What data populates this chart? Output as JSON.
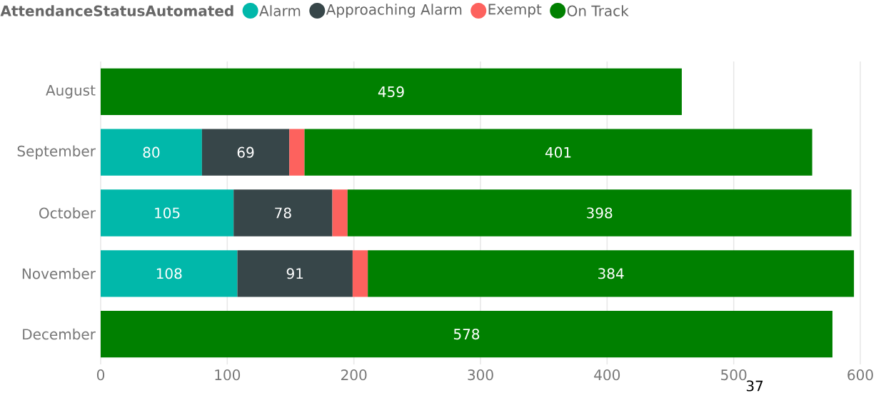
{
  "chart_data": {
    "type": "bar",
    "orientation": "horizontal",
    "stacked": true,
    "legend_title": "AttendanceStatusAutomated",
    "categories": [
      "August",
      "September",
      "October",
      "November",
      "December"
    ],
    "series": [
      {
        "name": "Alarm",
        "color": "#01b8aa",
        "values": [
          null,
          80,
          105,
          108,
          null
        ],
        "value_labels": [
          null,
          "80",
          "105",
          "108",
          null
        ]
      },
      {
        "name": "Approaching Alarm",
        "color": "#374649",
        "values": [
          null,
          69,
          78,
          91,
          null
        ],
        "value_labels": [
          null,
          "69",
          "78",
          "91",
          null
        ]
      },
      {
        "name": "Exempt",
        "color": "#fd625e",
        "values": [
          null,
          12,
          12,
          12,
          null
        ],
        "value_labels": [
          null,
          null,
          null,
          null,
          null
        ]
      },
      {
        "name": "On Track",
        "color": "#008000",
        "values": [
          459,
          401,
          398,
          384,
          578
        ],
        "value_labels": [
          "459",
          "401",
          "398",
          "384",
          "578"
        ]
      }
    ],
    "xlim": [
      0,
      600
    ],
    "xticks": [
      0,
      100,
      200,
      300,
      400,
      500,
      600
    ],
    "grid": "x",
    "legend": "top left",
    "annotations": [
      "37"
    ]
  }
}
